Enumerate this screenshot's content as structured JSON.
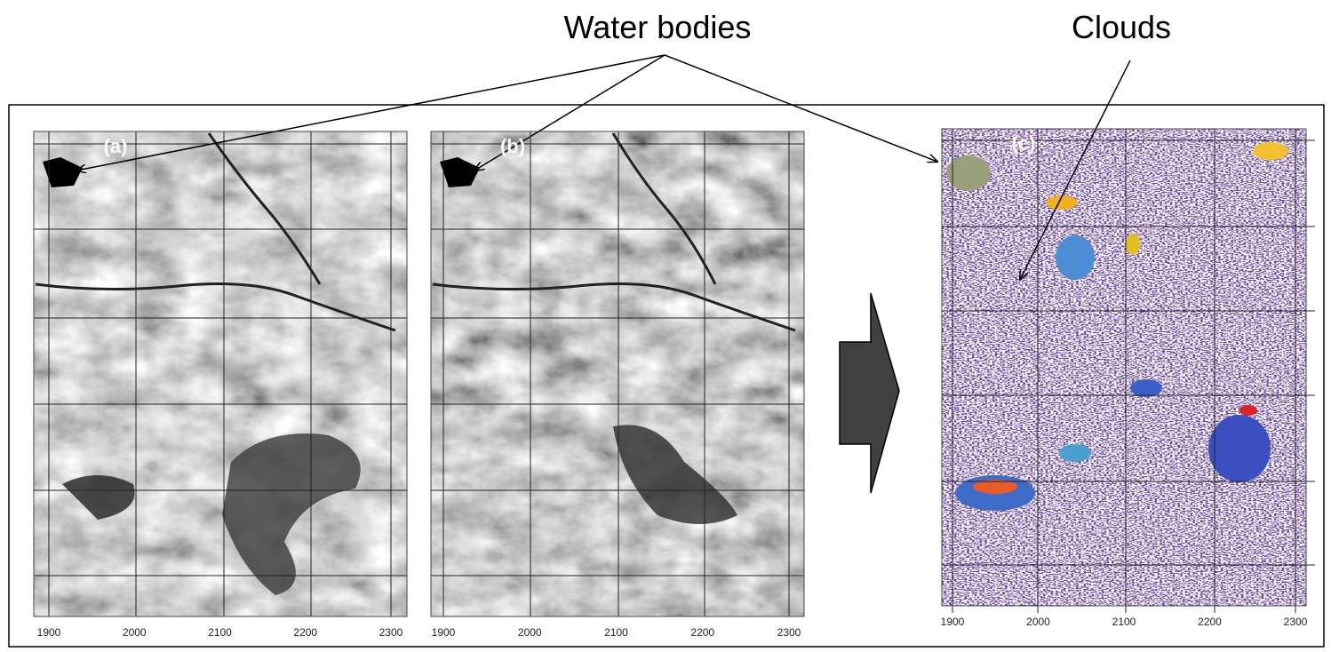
{
  "annotations": {
    "water_bodies": "Water bodies",
    "clouds": "Clouds"
  },
  "panels": [
    {
      "label": "(a)",
      "x_ticks": [
        1900,
        2000,
        2100,
        2200,
        2300
      ]
    },
    {
      "label": "(b)",
      "x_ticks": [
        1900,
        2000,
        2100,
        2200,
        2300
      ]
    },
    {
      "label": "(c)",
      "x_ticks": [
        1900,
        2000,
        2100,
        2200,
        2300
      ]
    }
  ]
}
